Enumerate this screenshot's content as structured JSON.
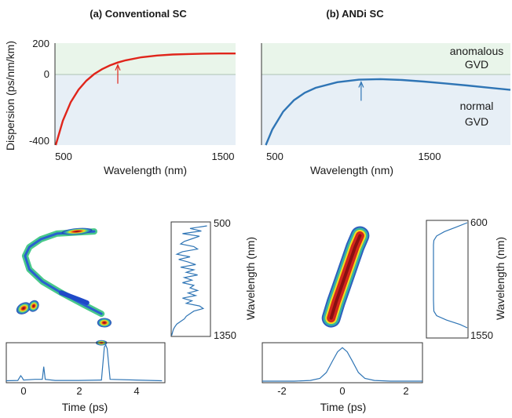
{
  "colors": {
    "anomalous_region": "#e9f5ea",
    "normal_region": "#e7eff6",
    "conventional_curve": "#e0251b",
    "andi_curve": "#2f75b5",
    "spectrum_line": "#2f75b5",
    "zero_line": "#9ab0a0"
  },
  "chart_data": [
    {
      "id": "a-dispersion",
      "type": "line",
      "title": "(a) Conventional SC",
      "xlabel": "Wavelength (nm)",
      "ylabel": "Dispersion (ps/nm/km)",
      "xlim": [
        450,
        1600
      ],
      "ylim": [
        -400,
        200
      ],
      "xticks": [
        "500",
        "1500"
      ],
      "yticks": [
        "200",
        "0",
        "-400"
      ],
      "series": [
        {
          "x": [
            455,
            500,
            550,
            600,
            650,
            700,
            750,
            800,
            850,
            900,
            1000,
            1100,
            1200,
            1300,
            1400,
            1500,
            1600
          ],
          "y": [
            -400,
            -257,
            -148,
            -74,
            -21,
            18,
            47,
            69,
            86,
            99,
            117,
            127,
            133,
            136,
            138,
            139,
            139
          ]
        }
      ],
      "annotations": [
        {
          "type": "arrow",
          "x": 850,
          "y": 86
        }
      ]
    },
    {
      "id": "b-dispersion",
      "type": "line",
      "title": "(b) ANDi SC",
      "xlabel": "Wavelength (nm)",
      "xlim": [
        450,
        1600
      ],
      "ylim": [
        -400,
        200
      ],
      "xticks": [
        "500",
        "1500"
      ],
      "region_labels": [
        "anomalous",
        "GVD",
        "normal",
        "GVD"
      ],
      "series": [
        {
          "x": [
            470,
            500,
            550,
            600,
            650,
            700,
            800,
            900,
            1000,
            1100,
            1200,
            1300,
            1400,
            1500,
            1600
          ],
          "y": [
            -400,
            -308,
            -203,
            -136,
            -92,
            -63,
            -30,
            -15,
            -12,
            -17,
            -26,
            -37,
            -49,
            -62,
            -75
          ]
        }
      ],
      "annotations": [
        {
          "type": "arrow",
          "x": 1030,
          "y": -10
        }
      ]
    },
    {
      "id": "a-spectrogram",
      "type": "heatmap",
      "blobs": [
        {
          "x": 0.1,
          "y": 0.74,
          "w": 0.16,
          "h": 0.11,
          "rot": 60
        },
        {
          "x": 0.45,
          "y": 0.72,
          "w": 0.13,
          "h": 0.08,
          "rot": 30
        },
        {
          "x": 2.8,
          "y": 1.05,
          "w": 0.18,
          "h": 0.02,
          "rot": 0
        },
        {
          "x": 1.95,
          "y": 0.05,
          "w": 0.85,
          "h": 0.03,
          "rot": -5
        }
      ],
      "crescent": [
        [
          2.55,
          0.05
        ],
        [
          1.25,
          0.07
        ],
        [
          0.7,
          0.12
        ],
        [
          0.3,
          0.19
        ],
        [
          0.15,
          0.27
        ],
        [
          0.3,
          0.39
        ],
        [
          0.75,
          0.5
        ],
        [
          1.4,
          0.6
        ],
        [
          2.2,
          0.71
        ],
        [
          2.8,
          0.79
        ]
      ],
      "streak": [
        [
          1.4,
          0.6
        ],
        [
          1.7,
          0.63
        ],
        [
          2.0,
          0.66
        ],
        [
          2.3,
          0.69
        ]
      ],
      "hot_blob": {
        "x": 2.9,
        "y": 0.87,
        "w": 0.11,
        "h": 0.1,
        "rot": 90
      }
    },
    {
      "id": "a-spectrum",
      "type": "line",
      "yticks": [
        "500",
        "1350"
      ],
      "wl": [
        500,
        520,
        540,
        560,
        580,
        600,
        620,
        640,
        660,
        680,
        700,
        720,
        740,
        760,
        780,
        800,
        820,
        840,
        860,
        880,
        900,
        920,
        940,
        960,
        980,
        1000,
        1020,
        1040,
        1060,
        1080,
        1100,
        1120,
        1140,
        1160,
        1180,
        1200,
        1220,
        1240,
        1260,
        1280,
        1300,
        1320,
        1340,
        1350
      ],
      "power": [
        0.95,
        0.5,
        0.8,
        0.3,
        0.75,
        0.55,
        0.35,
        0.25,
        0.6,
        0.7,
        0.3,
        0.15,
        0.5,
        0.2,
        0.45,
        0.65,
        0.25,
        0.6,
        0.4,
        0.7,
        0.35,
        0.55,
        0.3,
        0.6,
        0.5,
        0.7,
        0.45,
        0.65,
        0.3,
        0.55,
        0.4,
        0.75,
        0.85,
        0.6,
        0.5,
        0.4,
        0.35,
        0.25,
        0.15,
        0.1,
        0.06,
        0.04,
        0.02,
        0.01
      ]
    },
    {
      "id": "a-pulse",
      "type": "line",
      "xlabel": "Time (ps)",
      "xlim": [
        -0.5,
        5.0
      ],
      "xticks": [
        "0",
        "2",
        "4"
      ],
      "t": [
        -0.5,
        -0.1,
        0.0,
        0.05,
        0.1,
        0.5,
        0.75,
        0.8,
        0.85,
        1.2,
        2.0,
        2.8,
        2.9,
        2.95,
        3.0,
        3.1,
        4.0,
        4.9
      ],
      "power": [
        0.01,
        0.02,
        0.15,
        0.1,
        0.03,
        0.05,
        0.05,
        0.4,
        0.05,
        0.02,
        0.02,
        0.03,
        0.95,
        1.0,
        0.9,
        0.05,
        0.03,
        0.01
      ]
    },
    {
      "id": "b-spectrogram",
      "type": "heatmap",
      "path": [
        [
          -0.35,
          0.92
        ],
        [
          -0.2,
          0.75
        ],
        [
          -0.05,
          0.6
        ],
        [
          0.1,
          0.45
        ],
        [
          0.25,
          0.3
        ],
        [
          0.4,
          0.15
        ],
        [
          0.55,
          0.03
        ]
      ]
    },
    {
      "id": "b-spectrum",
      "type": "line",
      "yticks": [
        "600",
        "1550"
      ],
      "wl": [
        600,
        640,
        680,
        720,
        760,
        800,
        900,
        1000,
        1100,
        1200,
        1300,
        1400,
        1440,
        1480,
        1520,
        1550
      ],
      "power": [
        0.02,
        0.3,
        0.6,
        0.8,
        0.87,
        0.88,
        0.88,
        0.88,
        0.88,
        0.88,
        0.88,
        0.87,
        0.8,
        0.55,
        0.2,
        0.02
      ]
    },
    {
      "id": "b-pulse",
      "type": "line",
      "xlabel": "Time (ps)",
      "xlim": [
        -2.5,
        2.5
      ],
      "xticks": [
        "-2",
        "0",
        "2"
      ],
      "t": [
        -2.5,
        -1.5,
        -1.0,
        -0.7,
        -0.5,
        -0.3,
        -0.15,
        0.0,
        0.15,
        0.3,
        0.5,
        0.7,
        1.0,
        1.5,
        2.5
      ],
      "power": [
        0.0,
        0.0,
        0.02,
        0.08,
        0.25,
        0.6,
        0.85,
        0.97,
        0.85,
        0.6,
        0.25,
        0.08,
        0.02,
        0.0,
        0.0
      ]
    }
  ]
}
